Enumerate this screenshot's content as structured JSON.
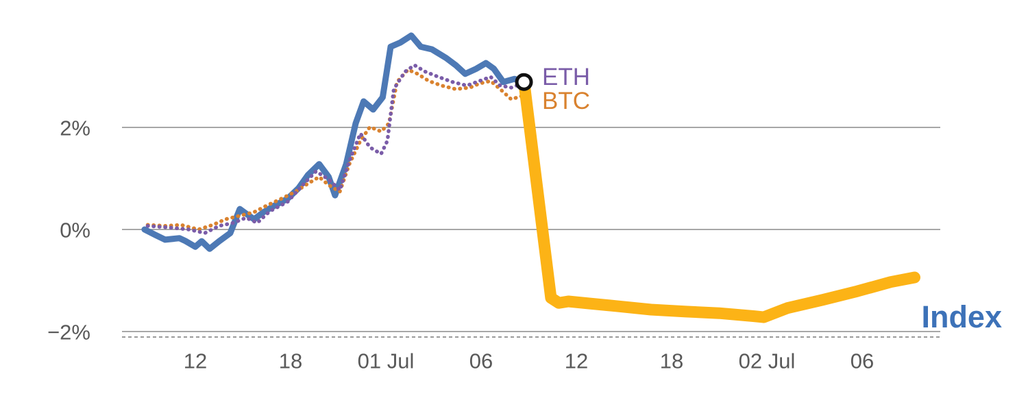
{
  "chart_data": {
    "type": "line",
    "title": "",
    "xlabel": "",
    "ylabel": "",
    "grid": true,
    "background": "#ffffff",
    "grid_color": "#8a8a8a",
    "axis_dash_color": "#9a9a9a",
    "tick_color": "#595959",
    "ylim": [
      -2.45,
      4.4
    ],
    "y_ticks": [
      {
        "value": 2,
        "label": "2%"
      },
      {
        "value": 0,
        "label": "0%"
      },
      {
        "value": -2,
        "label": "−2%"
      }
    ],
    "x_unit": "hours since 30 Jun 00:00",
    "x_ticks": [
      {
        "value": 12,
        "label": "12"
      },
      {
        "value": 18,
        "label": "18"
      },
      {
        "value": 24,
        "label": "01 Jul"
      },
      {
        "value": 30,
        "label": "06"
      },
      {
        "value": 36,
        "label": "12"
      },
      {
        "value": 42,
        "label": "18"
      },
      {
        "value": 48,
        "label": "02 Jul"
      },
      {
        "value": 54,
        "label": "06"
      }
    ],
    "series": [
      {
        "id": "index",
        "name": "Index",
        "color": "#4d79b5",
        "style": "solid",
        "width": 9,
        "points": [
          [
            8.8,
            0.0
          ],
          [
            9.5,
            -0.11
          ],
          [
            10.1,
            -0.2
          ],
          [
            11.0,
            -0.17
          ],
          [
            11.4,
            -0.23
          ],
          [
            12.0,
            -0.34
          ],
          [
            12.4,
            -0.23
          ],
          [
            12.9,
            -0.38
          ],
          [
            13.5,
            -0.23
          ],
          [
            14.2,
            -0.07
          ],
          [
            14.8,
            0.4
          ],
          [
            15.2,
            0.31
          ],
          [
            15.7,
            0.2
          ],
          [
            16.3,
            0.34
          ],
          [
            17.0,
            0.47
          ],
          [
            17.8,
            0.6
          ],
          [
            18.5,
            0.81
          ],
          [
            19.1,
            1.07
          ],
          [
            19.8,
            1.28
          ],
          [
            20.4,
            1.03
          ],
          [
            20.8,
            0.67
          ],
          [
            21.5,
            1.28
          ],
          [
            22.1,
            2.08
          ],
          [
            22.6,
            2.51
          ],
          [
            23.2,
            2.35
          ],
          [
            23.8,
            2.59
          ],
          [
            24.3,
            3.58
          ],
          [
            24.9,
            3.66
          ],
          [
            25.6,
            3.8
          ],
          [
            26.2,
            3.58
          ],
          [
            26.9,
            3.53
          ],
          [
            27.8,
            3.36
          ],
          [
            28.4,
            3.22
          ],
          [
            29.0,
            3.05
          ],
          [
            29.7,
            3.15
          ],
          [
            30.3,
            3.26
          ],
          [
            30.8,
            3.15
          ],
          [
            31.4,
            2.89
          ],
          [
            32.1,
            2.95
          ],
          [
            32.7,
            2.89
          ]
        ]
      },
      {
        "id": "btc",
        "name": "BTC",
        "color": "#d9822f",
        "style": "dotted",
        "width": 5.5,
        "points": [
          [
            9.0,
            0.09
          ],
          [
            10.1,
            0.07
          ],
          [
            11.1,
            0.09
          ],
          [
            12.2,
            0.0
          ],
          [
            13.1,
            0.09
          ],
          [
            13.9,
            0.2
          ],
          [
            14.8,
            0.27
          ],
          [
            15.7,
            0.34
          ],
          [
            16.5,
            0.47
          ],
          [
            17.4,
            0.6
          ],
          [
            18.3,
            0.74
          ],
          [
            19.1,
            0.9
          ],
          [
            19.8,
            1.03
          ],
          [
            20.4,
            0.87
          ],
          [
            21.1,
            0.74
          ],
          [
            21.7,
            1.28
          ],
          [
            22.4,
            1.74
          ],
          [
            23.0,
            2.01
          ],
          [
            23.7,
            1.92
          ],
          [
            24.2,
            2.08
          ],
          [
            24.7,
            2.89
          ],
          [
            25.4,
            3.13
          ],
          [
            26.0,
            3.05
          ],
          [
            26.7,
            2.91
          ],
          [
            27.5,
            2.82
          ],
          [
            28.4,
            2.75
          ],
          [
            29.3,
            2.78
          ],
          [
            29.9,
            2.86
          ],
          [
            30.6,
            2.91
          ],
          [
            31.2,
            2.75
          ],
          [
            31.9,
            2.55
          ],
          [
            32.6,
            2.62
          ]
        ]
      },
      {
        "id": "eth",
        "name": "ETH",
        "color": "#7a5ca8",
        "style": "dotted",
        "width": 5.5,
        "points": [
          [
            9.0,
            0.07
          ],
          [
            10.3,
            0.04
          ],
          [
            11.6,
            0.0
          ],
          [
            12.6,
            -0.07
          ],
          [
            13.5,
            0.07
          ],
          [
            14.4,
            0.13
          ],
          [
            15.2,
            0.23
          ],
          [
            15.9,
            0.13
          ],
          [
            16.7,
            0.36
          ],
          [
            17.8,
            0.54
          ],
          [
            18.7,
            0.85
          ],
          [
            19.6,
            1.14
          ],
          [
            20.4,
            0.98
          ],
          [
            21.1,
            0.77
          ],
          [
            21.7,
            1.34
          ],
          [
            22.4,
            1.88
          ],
          [
            23.0,
            1.61
          ],
          [
            23.7,
            1.48
          ],
          [
            24.1,
            1.74
          ],
          [
            24.5,
            2.75
          ],
          [
            25.2,
            3.09
          ],
          [
            25.8,
            3.22
          ],
          [
            26.5,
            3.09
          ],
          [
            27.3,
            2.99
          ],
          [
            28.2,
            2.89
          ],
          [
            29.1,
            2.82
          ],
          [
            29.9,
            2.91
          ],
          [
            30.6,
            2.99
          ],
          [
            31.2,
            2.82
          ],
          [
            31.9,
            2.78
          ],
          [
            32.6,
            2.86
          ]
        ]
      },
      {
        "id": "highlight",
        "name": "",
        "color": "#fcb316",
        "style": "solid",
        "width": 17,
        "points": [
          [
            32.7,
            2.89
          ],
          [
            34.4,
            -1.34
          ],
          [
            34.9,
            -1.44
          ],
          [
            35.5,
            -1.41
          ],
          [
            36.8,
            -1.45
          ],
          [
            38.5,
            -1.5
          ],
          [
            40.7,
            -1.57
          ],
          [
            42.9,
            -1.61
          ],
          [
            45.0,
            -1.64
          ],
          [
            47.2,
            -1.7
          ],
          [
            47.8,
            -1.72
          ],
          [
            49.3,
            -1.54
          ],
          [
            51.5,
            -1.38
          ],
          [
            53.7,
            -1.21
          ],
          [
            55.8,
            -1.03
          ],
          [
            57.3,
            -0.94
          ]
        ]
      }
    ],
    "marker": {
      "t": 32.7,
      "pct": 2.89,
      "fill": "#ffffff",
      "stroke": "#111111"
    },
    "annotations": [
      {
        "id": "eth-label",
        "text": "ETH",
        "color": "#7a5ca8"
      },
      {
        "id": "btc-label",
        "text": "BTC",
        "color": "#d9822f"
      },
      {
        "id": "index-label",
        "text": "Index",
        "color": "#3d72b8"
      }
    ]
  }
}
